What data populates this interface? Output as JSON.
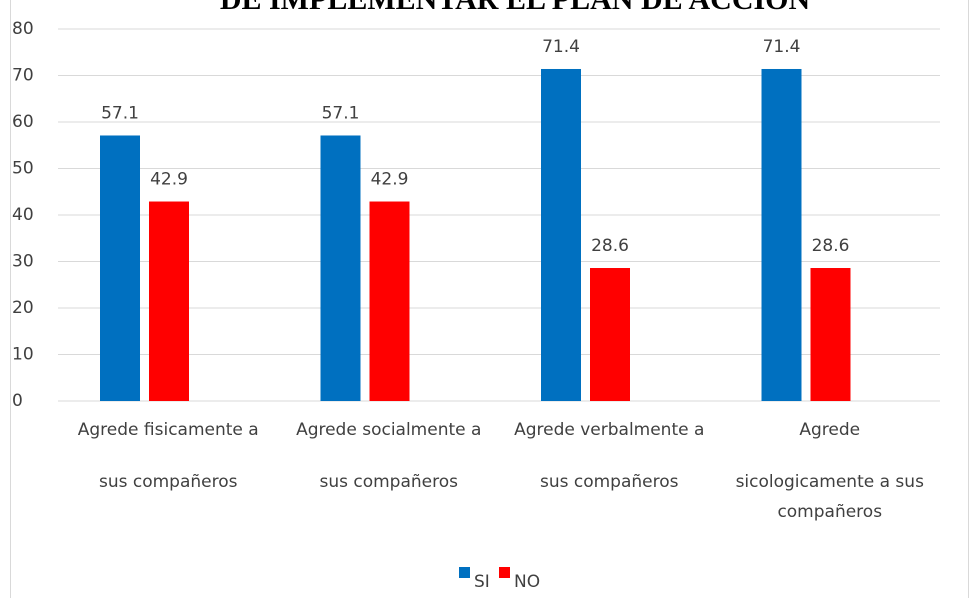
{
  "chart_data": {
    "type": "bar",
    "title": "DE IMPLEMENTAR EL PLAN DE ACCION",
    "categories": [
      [
        "Agrede fisicamente a",
        "sus compañeros"
      ],
      [
        "Agrede socialmente a",
        "sus compañeros"
      ],
      [
        "Agrede verbalmente a",
        "sus compañeros"
      ],
      [
        "Agrede",
        "sicologicamente a sus",
        "compañeros"
      ]
    ],
    "series": [
      {
        "name": "SI",
        "color": "#0070c0",
        "values": [
          57.1,
          57.1,
          71.4,
          71.4
        ]
      },
      {
        "name": "NO",
        "color": "#ff0000",
        "values": [
          42.9,
          42.9,
          28.6,
          28.6
        ]
      }
    ],
    "ylim": [
      0,
      80
    ],
    "yticks": [
      0,
      10,
      20,
      30,
      40,
      50,
      60,
      70,
      80
    ],
    "grid": true,
    "legend": "bottom"
  }
}
